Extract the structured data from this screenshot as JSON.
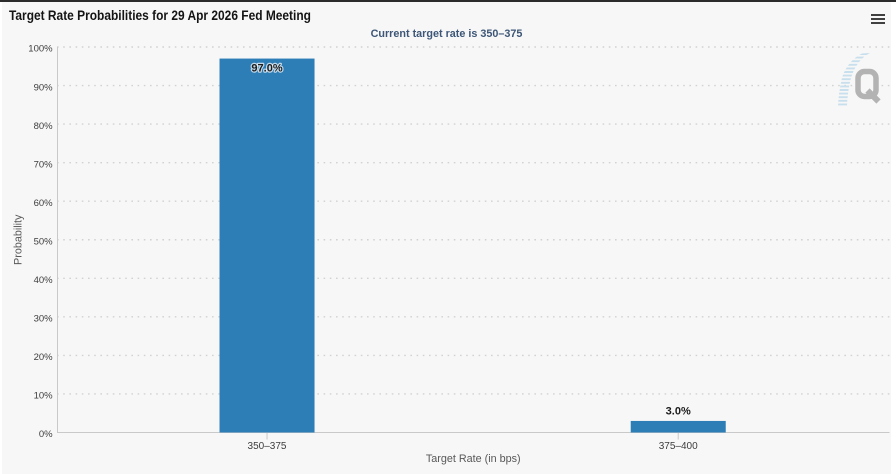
{
  "header": {
    "menu_icon": "hamburger-menu-icon"
  },
  "chart_data": {
    "type": "bar",
    "title": "Target Rate Probabilities for 29 Apr 2026 Fed Meeting",
    "subtitle": "Current target rate is 350–375",
    "categories": [
      "350–375",
      "375–400"
    ],
    "values": [
      97.0,
      3.0
    ],
    "value_labels": [
      "97.0%",
      "3.0%"
    ],
    "xlabel": "Target Rate (in bps)",
    "ylabel": "Probability",
    "ylim": [
      0,
      100
    ],
    "ytick_step": 10,
    "ytick_labels": [
      "0%",
      "10%",
      "20%",
      "30%",
      "40%",
      "50%",
      "60%",
      "70%",
      "80%",
      "90%",
      "100%"
    ],
    "grid": "dotted horizontal",
    "legend": "none",
    "watermark": "Q"
  },
  "colors": {
    "page_background": "#ffffff",
    "chart_background": "#f7f7f7",
    "top_border": "#2b2b2b",
    "bar": "#2d7db7",
    "grid_line": "#d2d2d2",
    "axis_line": "#c9c9c9",
    "title_text": "#141414",
    "subtitle_text": "#3d5677",
    "tick_label_text": "#3d3d3d",
    "axis_title_text": "#585858",
    "data_label_text": "#1c1c1c",
    "menu_icon": "#404040",
    "watermark_q": "#b3b3b3",
    "watermark_stripes": "#c8dfed"
  }
}
